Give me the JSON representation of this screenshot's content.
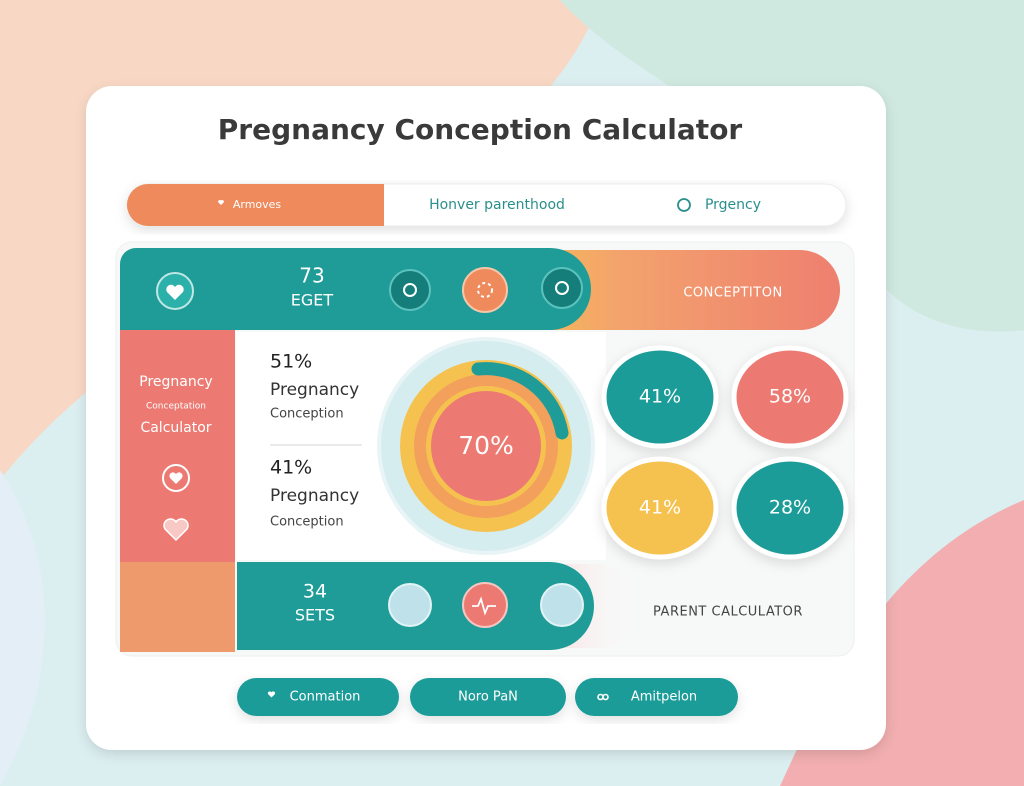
{
  "header": {
    "title": "Pregnancy Conception Calculator"
  },
  "tabs": [
    "Armoves",
    "Honver parenthood",
    "Prgency"
  ],
  "top_bar": {
    "number": "73",
    "label": "EGET",
    "caption": "CONCEPTITON"
  },
  "sidebar": {
    "title": "Pregnancy",
    "subtitle": "Conceptation",
    "label": "Calculator"
  },
  "stats": [
    {
      "percent": "51%",
      "title": "Pregnancy",
      "subtitle": "Conception"
    },
    {
      "percent": "41%",
      "title": "Pregnancy",
      "subtitle": "Conception"
    }
  ],
  "donut": {
    "value": "70%"
  },
  "circles": [
    "41%",
    "58%",
    "41%",
    "28%"
  ],
  "bottom_bar": {
    "number": "34",
    "label": "SETS",
    "caption": "PARENT CALCULATOR"
  },
  "buttons": [
    "Conmation",
    "Noro PaN",
    "Amitpelon"
  ]
}
